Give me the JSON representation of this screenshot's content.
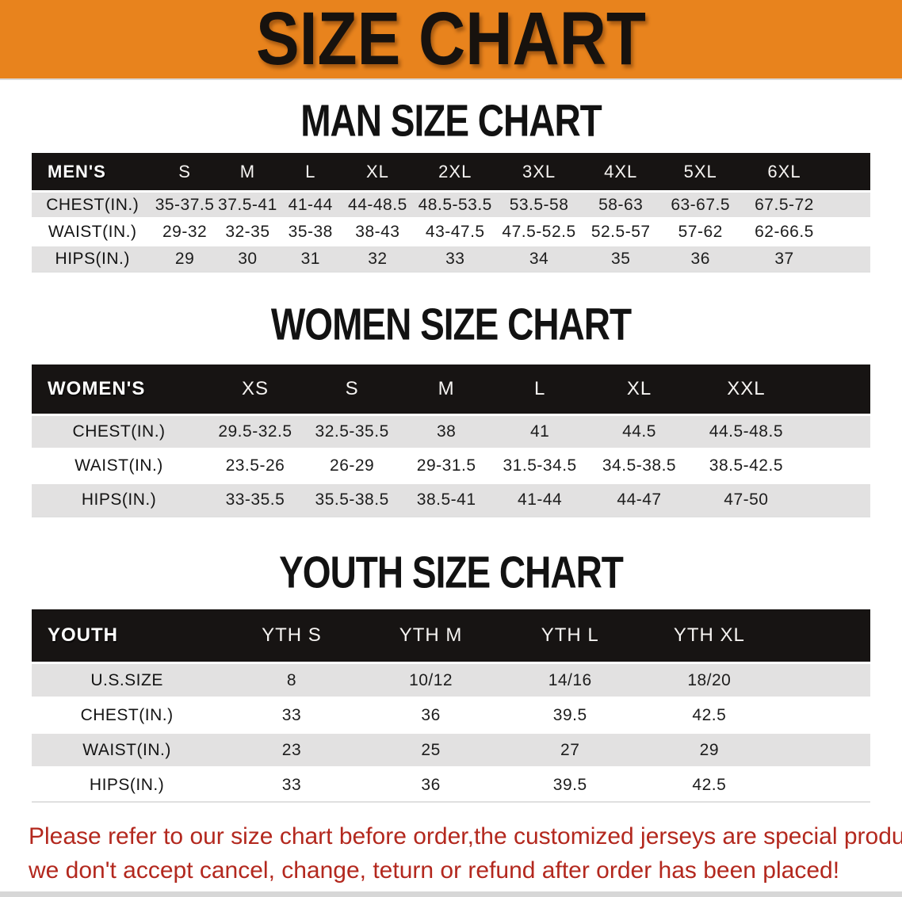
{
  "banner": {
    "title": "SIZE CHART"
  },
  "colors": {
    "banner_bg": "#e8831d",
    "header_bar_bg": "#171413",
    "row_gray": "#e2e1e1",
    "disclaimer_red": "#b3281e"
  },
  "sections": [
    {
      "heading": "MAN SIZE CHART",
      "table": {
        "label": "MEN'S",
        "sizes": [
          "S",
          "M",
          "L",
          "XL",
          "2XL",
          "3XL",
          "4XL",
          "5XL",
          "6XL"
        ],
        "rows": [
          {
            "label": "CHEST(IN.)",
            "values": [
              "35-37.5",
              "37.5-41",
              "41-44",
              "44-48.5",
              "48.5-53.5",
              "53.5-58",
              "58-63",
              "63-67.5",
              "67.5-72"
            ]
          },
          {
            "label": "WAIST(IN.)",
            "values": [
              "29-32",
              "32-35",
              "35-38",
              "38-43",
              "43-47.5",
              "47.5-52.5",
              "52.5-57",
              "57-62",
              "62-66.5"
            ]
          },
          {
            "label": "HIPS(IN.)",
            "values": [
              "29",
              "30",
              "31",
              "32",
              "33",
              "34",
              "35",
              "36",
              "37"
            ]
          }
        ]
      }
    },
    {
      "heading": "WOMEN SIZE CHART",
      "table": {
        "label": "WOMEN'S",
        "sizes": [
          "XS",
          "S",
          "M",
          "L",
          "XL",
          "XXL"
        ],
        "rows": [
          {
            "label": "CHEST(IN.)",
            "values": [
              "29.5-32.5",
              "32.5-35.5",
              "38",
              "41",
              "44.5",
              "44.5-48.5"
            ]
          },
          {
            "label": "WAIST(IN.)",
            "values": [
              "23.5-26",
              "26-29",
              "29-31.5",
              "31.5-34.5",
              "34.5-38.5",
              "38.5-42.5"
            ]
          },
          {
            "label": "HIPS(IN.)",
            "values": [
              "33-35.5",
              "35.5-38.5",
              "38.5-41",
              "41-44",
              "44-47",
              "47-50"
            ]
          }
        ]
      }
    },
    {
      "heading": "YOUTH SIZE CHART",
      "table": {
        "label": "YOUTH",
        "sizes": [
          "YTH S",
          "YTH M",
          "YTH L",
          "YTH XL"
        ],
        "rows": [
          {
            "label": "U.S.SIZE",
            "values": [
              "8",
              "10/12",
              "14/16",
              "18/20"
            ]
          },
          {
            "label": "CHEST(IN.)",
            "values": [
              "33",
              "36",
              "39.5",
              "42.5"
            ]
          },
          {
            "label": "WAIST(IN.)",
            "values": [
              "23",
              "25",
              "27",
              "29"
            ]
          },
          {
            "label": "HIPS(IN.)",
            "values": [
              "33",
              "36",
              "39.5",
              "42.5"
            ]
          }
        ]
      }
    }
  ],
  "disclaimer": {
    "lines": [
      "Please refer to our size chart before order,the customized jerseys are special products,",
      "we don't accept cancel, change, teturn or refund after order has been placed!"
    ]
  },
  "chart_data": [
    {
      "type": "table",
      "title": "MAN SIZE CHART",
      "columns": [
        "MEN'S",
        "S",
        "M",
        "L",
        "XL",
        "2XL",
        "3XL",
        "4XL",
        "5XL",
        "6XL"
      ],
      "rows": [
        [
          "CHEST(IN.)",
          "35-37.5",
          "37.5-41",
          "41-44",
          "44-48.5",
          "48.5-53.5",
          "53.5-58",
          "58-63",
          "63-67.5",
          "67.5-72"
        ],
        [
          "WAIST(IN.)",
          "29-32",
          "32-35",
          "35-38",
          "38-43",
          "43-47.5",
          "47.5-52.5",
          "52.5-57",
          "57-62",
          "62-66.5"
        ],
        [
          "HIPS(IN.)",
          "29",
          "30",
          "31",
          "32",
          "33",
          "34",
          "35",
          "36",
          "37"
        ]
      ]
    },
    {
      "type": "table",
      "title": "WOMEN SIZE CHART",
      "columns": [
        "WOMEN'S",
        "XS",
        "S",
        "M",
        "L",
        "XL",
        "XXL"
      ],
      "rows": [
        [
          "CHEST(IN.)",
          "29.5-32.5",
          "32.5-35.5",
          "38",
          "41",
          "44.5",
          "44.5-48.5"
        ],
        [
          "WAIST(IN.)",
          "23.5-26",
          "26-29",
          "29-31.5",
          "31.5-34.5",
          "34.5-38.5",
          "38.5-42.5"
        ],
        [
          "HIPS(IN.)",
          "33-35.5",
          "35.5-38.5",
          "38.5-41",
          "41-44",
          "44-47",
          "47-50"
        ]
      ]
    },
    {
      "type": "table",
      "title": "YOUTH SIZE CHART",
      "columns": [
        "YOUTH",
        "YTH S",
        "YTH M",
        "YTH L",
        "YTH XL"
      ],
      "rows": [
        [
          "U.S.SIZE",
          "8",
          "10/12",
          "14/16",
          "18/20"
        ],
        [
          "CHEST(IN.)",
          "33",
          "36",
          "39.5",
          "42.5"
        ],
        [
          "WAIST(IN.)",
          "23",
          "25",
          "27",
          "29"
        ],
        [
          "HIPS(IN.)",
          "33",
          "36",
          "39.5",
          "42.5"
        ]
      ]
    }
  ]
}
